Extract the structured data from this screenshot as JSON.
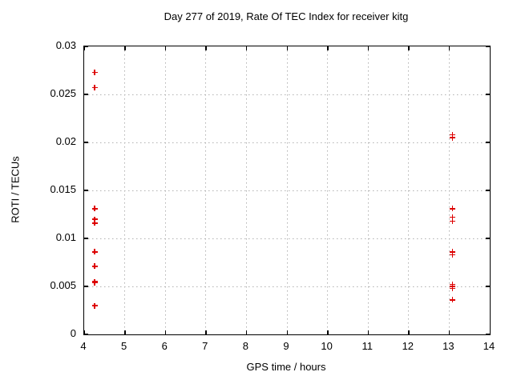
{
  "colors": {
    "marker": "#dd0000",
    "grid": "#b0b0b0",
    "axis": "#000000",
    "background": "#ffffff",
    "text": "#000000"
  },
  "chart_data": {
    "type": "scatter",
    "title": "Day 277 of 2019, Rate Of TEC Index for receiver kitg",
    "xlabel": "GPS time / hours",
    "ylabel": "ROTI / TECUs",
    "xlim": [
      4,
      14
    ],
    "ylim": [
      0,
      0.03
    ],
    "xticks": [
      4,
      5,
      6,
      7,
      8,
      9,
      10,
      11,
      12,
      13,
      14
    ],
    "xtick_labels": [
      "4",
      "5",
      "6",
      "7",
      "8",
      "9",
      "10",
      "11",
      "12",
      "13",
      "14"
    ],
    "yticks": [
      0,
      0.005,
      0.01,
      0.015,
      0.02,
      0.025,
      0.03
    ],
    "ytick_labels": [
      "0",
      "0.005",
      "0.01",
      "0.015",
      "0.02",
      "0.025",
      "0.03"
    ],
    "grid": true,
    "legend": "none",
    "marker": {
      "shape": "plus",
      "size": 7
    },
    "series": [
      {
        "name": "ROTI",
        "points": [
          [
            4.26,
            0.0273
          ],
          [
            4.26,
            0.0257
          ],
          [
            4.26,
            0.0131
          ],
          [
            4.26,
            0.012
          ],
          [
            4.26,
            0.0116
          ],
          [
            4.26,
            0.0086
          ],
          [
            4.26,
            0.0071
          ],
          [
            4.26,
            0.0055
          ],
          [
            4.26,
            0.0054
          ],
          [
            4.26,
            0.003
          ],
          [
            13.08,
            0.0208
          ],
          [
            13.08,
            0.0205
          ],
          [
            13.08,
            0.0131
          ],
          [
            13.08,
            0.0122
          ],
          [
            13.08,
            0.0118
          ],
          [
            13.08,
            0.0086
          ],
          [
            13.08,
            0.0083
          ],
          [
            13.08,
            0.0052
          ],
          [
            13.08,
            0.005
          ],
          [
            13.08,
            0.0048
          ],
          [
            13.08,
            0.0036
          ]
        ]
      }
    ]
  }
}
